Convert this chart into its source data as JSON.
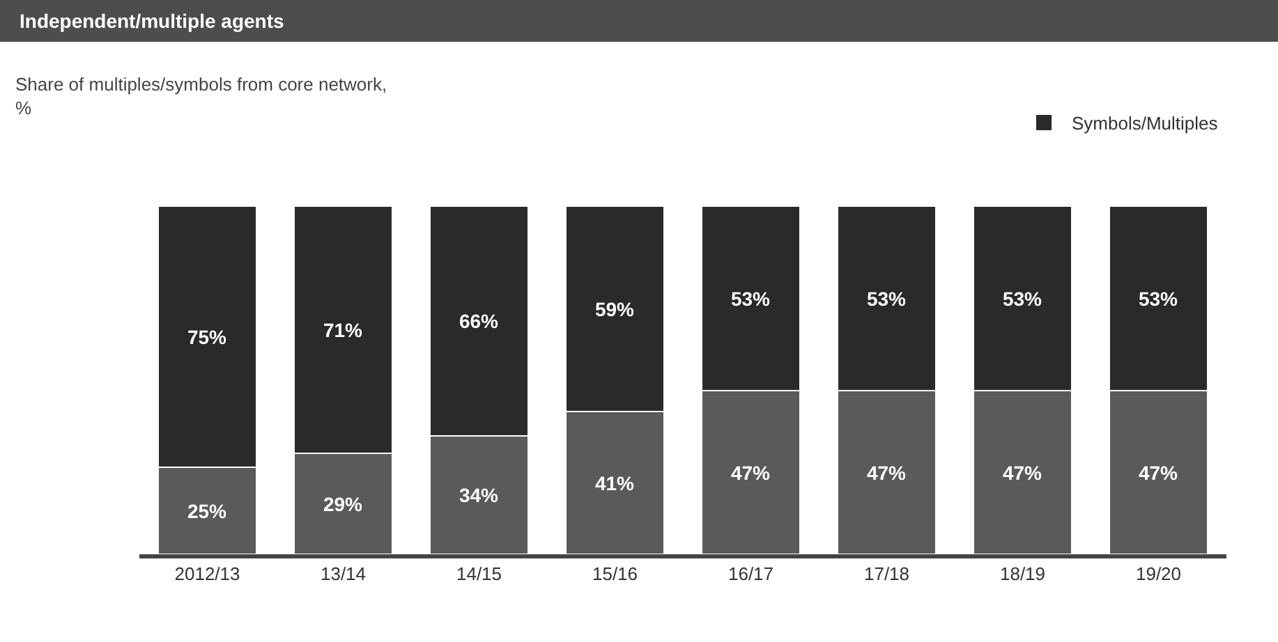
{
  "chart_data": {
    "type": "bar",
    "title": "Independent/multiple agents",
    "subtitle": "Share of multiples/symbols from core network,\n%",
    "categories": [
      "2012/13",
      "13/14",
      "14/15",
      "15/16",
      "16/17",
      "17/18",
      "18/19",
      "19/20"
    ],
    "stacked": true,
    "ylim": [
      0,
      100
    ],
    "tick_labels": "x",
    "legend": "top right",
    "grid": false,
    "series": [
      {
        "color": "#5a5a5a",
        "values": [
          25,
          29,
          34,
          41,
          47,
          47,
          47,
          47
        ],
        "value_labels": [
          "25%",
          "29%",
          "34%",
          "41%",
          "47%",
          "47%",
          "47%",
          "47%"
        ]
      },
      {
        "name": "Symbols/Multiples",
        "color": "#2a2a2a",
        "values": [
          75,
          71,
          66,
          59,
          53,
          53,
          53,
          53
        ],
        "value_labels": [
          "75%",
          "71%",
          "66%",
          "59%",
          "53%",
          "53%",
          "53%",
          "53%"
        ]
      }
    ]
  }
}
